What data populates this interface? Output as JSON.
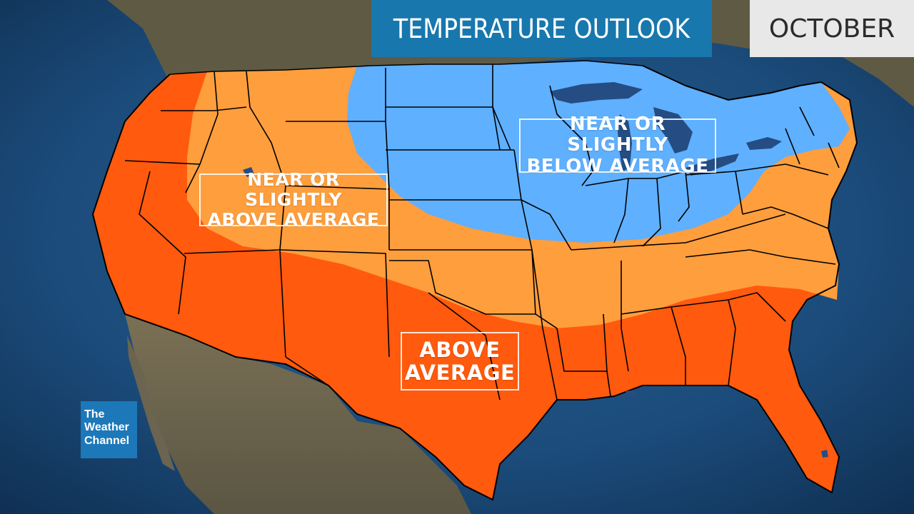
{
  "header": {
    "title": "TEMPERATURE OUTLOOK",
    "month": "OCTOBER"
  },
  "regions": {
    "below_line1": "NEAR OR SLIGHTLY",
    "below_line2": "BELOW AVERAGE",
    "near_above_line1": "NEAR OR SLIGHTLY",
    "near_above_line2": "ABOVE AVERAGE",
    "above_line1": "ABOVE",
    "above_line2": "AVERAGE"
  },
  "colors": {
    "ocean": "#1b4b7a",
    "land": "#6b6451",
    "above_average": "#ff5a0d",
    "near_above": "#ff9e3d",
    "near_below": "#5fb0ff",
    "brand": "#1c78b8"
  },
  "logo": {
    "line1": "The",
    "line2": "Weather",
    "line3": "Channel"
  }
}
